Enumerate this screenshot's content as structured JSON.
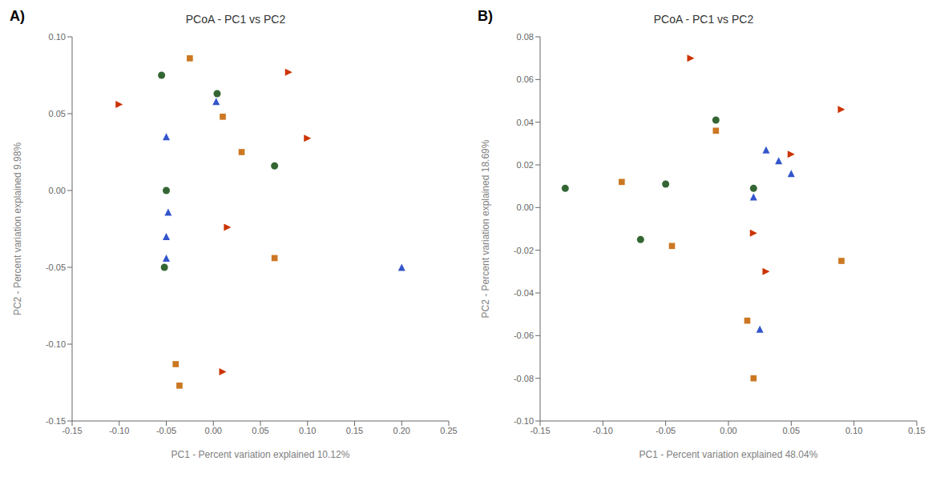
{
  "chart_data": [
    {
      "type": "scatter",
      "annotations": [
        "A)"
      ],
      "title": "PCoA - PC1 vs PC2",
      "x_label": "PC1 - Percent variation explained 10.12%",
      "y_label": "PC2 - Percent variation explained 9.98%",
      "xlim": [
        -0.15,
        0.25
      ],
      "ylim": [
        -0.15,
        0.1
      ],
      "xticks": [
        -0.15,
        {
          "value": -0.1,
          "label": "-0.10"
        },
        -0.05,
        {
          "value": 0.0,
          "label": "0.00"
        },
        0.05,
        {
          "value": 0.1,
          "label": "0.10"
        },
        0.15,
        {
          "value": 0.2,
          "label": "0.20"
        },
        0.25
      ],
      "yticks": [
        -0.15,
        {
          "value": -0.1,
          "label": "-0.10"
        },
        -0.05,
        {
          "value": 0.0,
          "label": "0.00"
        },
        0.05,
        {
          "value": 0.1,
          "label": "0.10"
        }
      ],
      "grid": false,
      "series": [
        {
          "color": "#cc3300",
          "marker": "triangle-right",
          "values": [
            [
              -0.1,
              0.056
            ],
            [
              0.08,
              0.077
            ],
            [
              0.1,
              0.034
            ],
            [
              0.015,
              -0.024
            ],
            [
              0.01,
              -0.118
            ]
          ]
        },
        {
          "color": "#3355cc",
          "marker": "triangle-up",
          "values": [
            [
              -0.05,
              0.035
            ],
            [
              0.003,
              0.058
            ],
            [
              -0.048,
              -0.014
            ],
            [
              -0.05,
              -0.03
            ],
            [
              -0.05,
              -0.044
            ],
            [
              0.2,
              -0.05
            ]
          ]
        },
        {
          "color": "#cc7722",
          "marker": "square",
          "values": [
            [
              -0.025,
              0.086
            ],
            [
              0.01,
              0.048
            ],
            [
              0.03,
              0.025
            ],
            [
              0.065,
              -0.044
            ],
            [
              -0.04,
              -0.113
            ],
            [
              -0.036,
              -0.127
            ]
          ]
        },
        {
          "color": "#336633",
          "marker": "circle",
          "values": [
            [
              -0.055,
              0.075
            ],
            [
              0.004,
              0.063
            ],
            [
              0.065,
              0.016
            ],
            [
              -0.05,
              0.0
            ],
            [
              -0.052,
              -0.05
            ]
          ]
        }
      ]
    },
    {
      "type": "scatter",
      "annotations": [
        "B)"
      ],
      "title": "PCoA - PC1 vs PC2",
      "x_label": "PC1 - Percent variation explained 48.04%",
      "y_label": "PC2 - Percent variation explained 18.69%",
      "xlim": [
        -0.15,
        0.15
      ],
      "ylim": [
        -0.1,
        0.08
      ],
      "xticks": [
        -0.15,
        {
          "value": -0.1,
          "label": "-0.10"
        },
        -0.05,
        {
          "value": 0.0,
          "label": "0.00"
        },
        0.05,
        {
          "value": 0.1,
          "label": "0.10"
        },
        0.15
      ],
      "yticks": [
        {
          "value": -0.1,
          "label": "-0.10"
        },
        -0.08,
        -0.06,
        -0.04,
        -0.02,
        {
          "value": 0.0,
          "label": "0.00"
        },
        0.02,
        0.04,
        0.06,
        0.08
      ],
      "grid": false,
      "series": [
        {
          "color": "#cc3300",
          "marker": "triangle-right",
          "values": [
            [
              -0.03,
              0.07
            ],
            [
              0.09,
              0.046
            ],
            [
              0.05,
              0.025
            ],
            [
              0.02,
              -0.012
            ],
            [
              0.03,
              -0.03
            ]
          ]
        },
        {
          "color": "#3355cc",
          "marker": "triangle-up",
          "values": [
            [
              0.02,
              0.005
            ],
            [
              0.03,
              0.027
            ],
            [
              0.04,
              0.022
            ],
            [
              0.05,
              0.016
            ],
            [
              0.025,
              -0.057
            ]
          ]
        },
        {
          "color": "#cc7722",
          "marker": "square",
          "values": [
            [
              -0.085,
              0.012
            ],
            [
              -0.045,
              -0.018
            ],
            [
              -0.01,
              0.036
            ],
            [
              0.09,
              -0.025
            ],
            [
              0.015,
              -0.053
            ],
            [
              0.02,
              -0.08
            ]
          ]
        },
        {
          "color": "#336633",
          "marker": "circle",
          "values": [
            [
              -0.13,
              0.009
            ],
            [
              -0.07,
              -0.015
            ],
            [
              -0.05,
              0.011
            ],
            [
              -0.01,
              0.041
            ],
            [
              0.02,
              0.009
            ]
          ]
        }
      ]
    }
  ]
}
